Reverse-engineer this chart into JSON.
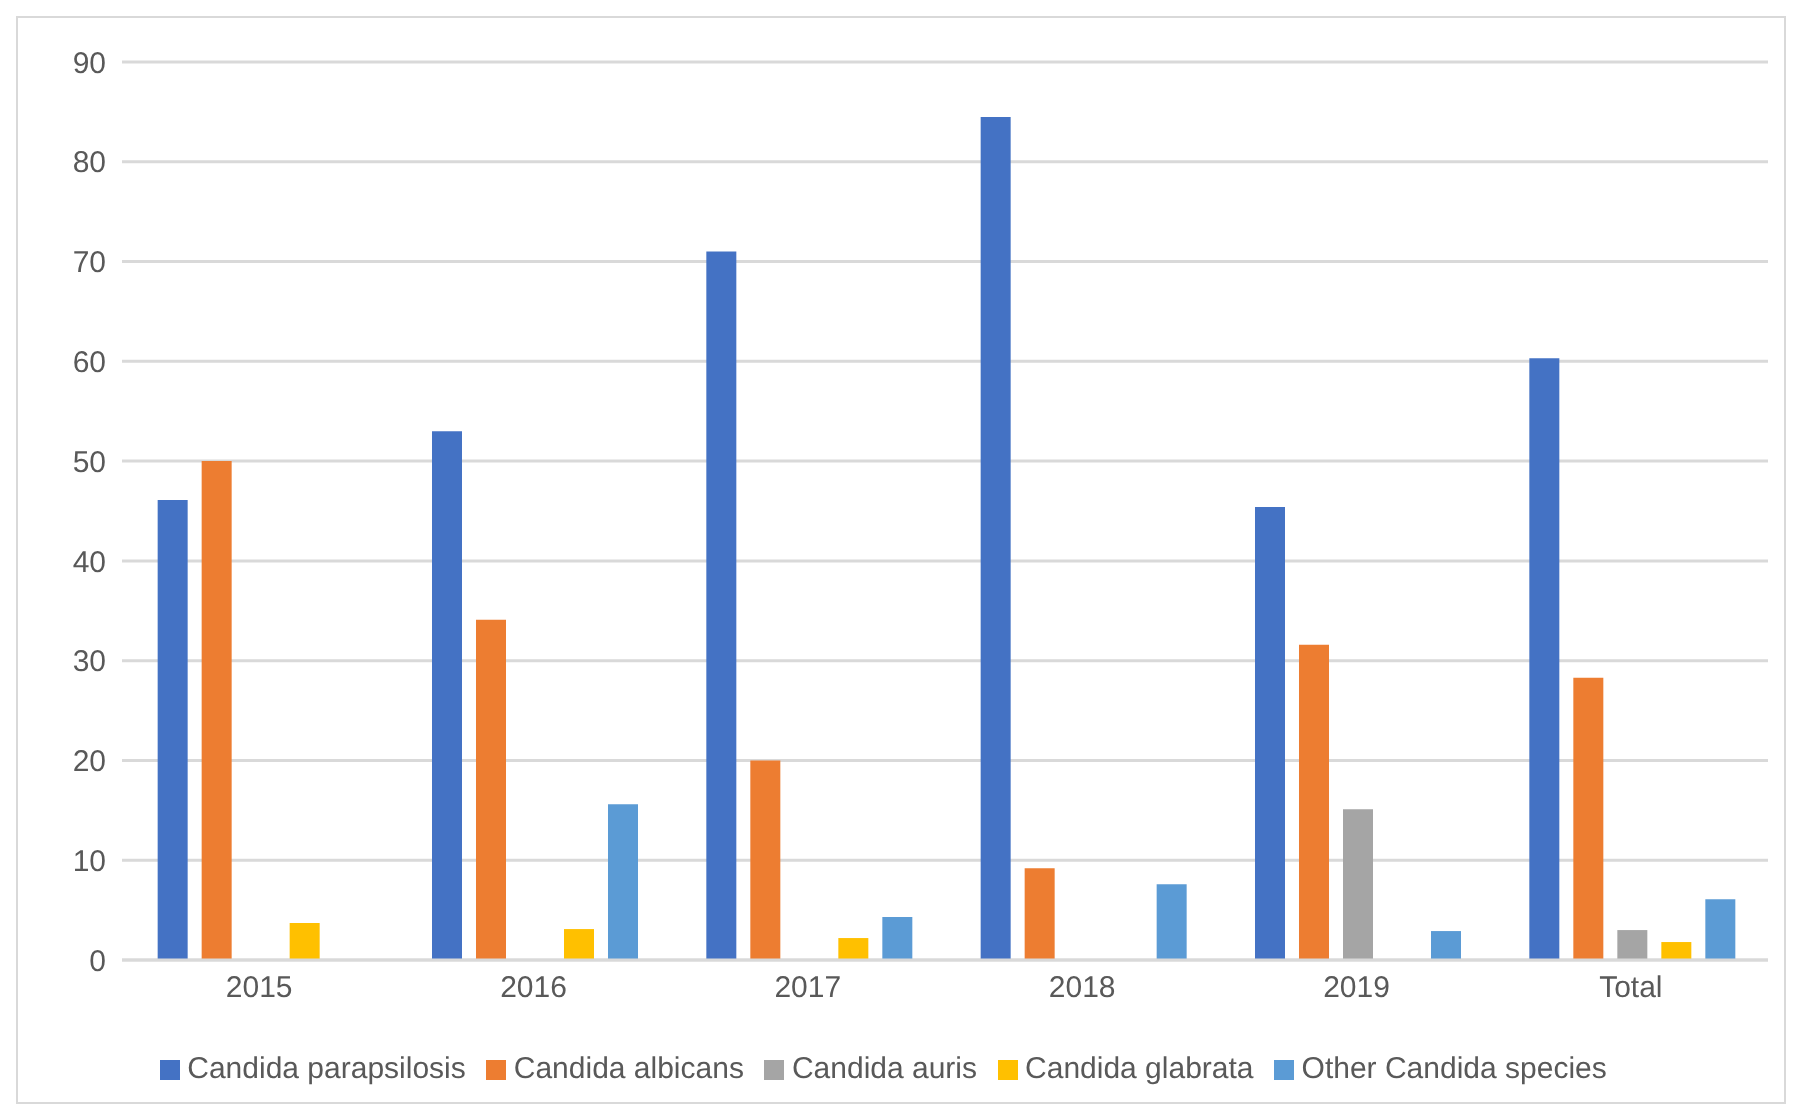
{
  "chart_data": {
    "type": "bar",
    "categories": [
      "2015",
      "2016",
      "2017",
      "2018",
      "2019",
      "Total"
    ],
    "series": [
      {
        "name": "Candida parapsilosis",
        "color": "#4472c4",
        "values": [
          46.1,
          53,
          71,
          84.5,
          45.4,
          60.3
        ]
      },
      {
        "name": "Candida albicans",
        "color": "#ed7d31",
        "values": [
          50,
          34.1,
          20,
          9.2,
          31.6,
          28.3
        ]
      },
      {
        "name": "Candida auris",
        "color": "#a5a5a5",
        "values": [
          null,
          null,
          null,
          null,
          15.1,
          3
        ]
      },
      {
        "name": "Candida glabrata",
        "color": "#ffc000",
        "values": [
          3.7,
          3.1,
          2.2,
          null,
          null,
          1.8
        ]
      },
      {
        "name": "Other Candida species",
        "color": "#5b9bd5",
        "values": [
          null,
          15.6,
          4.3,
          7.6,
          2.9,
          6.1
        ]
      }
    ],
    "ylim": [
      0,
      90
    ],
    "yticks": [
      0,
      10,
      20,
      30,
      40,
      50,
      60,
      70,
      80,
      90
    ],
    "grid": "y",
    "legend": "bottom"
  }
}
